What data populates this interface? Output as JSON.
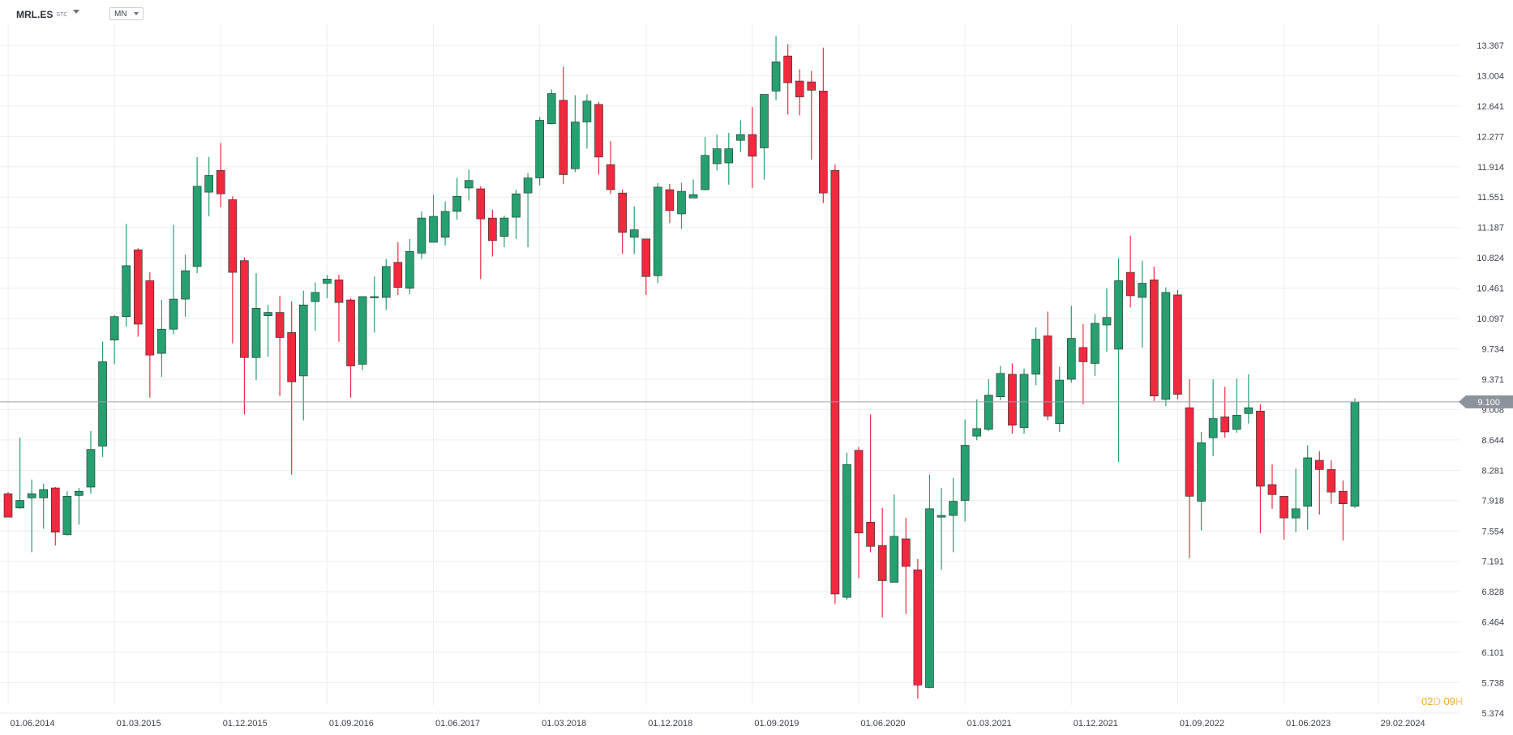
{
  "toolbar": {
    "symbol": "MRL.ES",
    "symbol_suffix": "STC",
    "timeframe": "MN"
  },
  "countdown": {
    "days": "02",
    "day_unit": "D",
    "hours": "09",
    "hour_unit": "H"
  },
  "colors": {
    "up": "#26a06e",
    "down": "#f0293e",
    "grid": "#eceef1",
    "price_line": "#9aa0a8",
    "price_tag": "#8c939c",
    "countdown": "#f5a623"
  },
  "chart_data": {
    "type": "candlestick",
    "title": "",
    "interval": "monthly",
    "ylim": [
      5.374,
      13.49
    ],
    "y_ticks": [
      "13.367",
      "13.004",
      "12.641",
      "12.277",
      "11.914",
      "11.551",
      "11.187",
      "10.824",
      "10.461",
      "10.097",
      "9.734",
      "9.371",
      "9.008",
      "8.644",
      "8.281",
      "7.918",
      "7.554",
      "7.191",
      "6.828",
      "6.464",
      "6.101",
      "5.738",
      "5.374"
    ],
    "x_ticks": [
      "01.06.2014",
      "01.03.2015",
      "01.12.2015",
      "01.09.2016",
      "01.06.2017",
      "01.03.2018",
      "01.12.2018",
      "01.09.2019",
      "01.06.2020",
      "01.03.2021",
      "01.12.2021",
      "01.09.2022",
      "01.06.2023",
      "29.02.2024"
    ],
    "current_price": "9.100",
    "candles": [
      {
        "d": "2014-06",
        "o": 8.0,
        "h": 8.02,
        "l": 7.72,
        "c": 7.72
      },
      {
        "d": "2014-07",
        "o": 7.83,
        "h": 8.67,
        "l": 7.82,
        "c": 7.92
      },
      {
        "d": "2014-08",
        "o": 7.95,
        "h": 8.17,
        "l": 7.3,
        "c": 8.0
      },
      {
        "d": "2014-09",
        "o": 7.95,
        "h": 8.12,
        "l": 7.58,
        "c": 8.05
      },
      {
        "d": "2014-10",
        "o": 8.07,
        "h": 8.08,
        "l": 7.38,
        "c": 7.54
      },
      {
        "d": "2014-11",
        "o": 7.51,
        "h": 8.03,
        "l": 7.5,
        "c": 7.97
      },
      {
        "d": "2014-12",
        "o": 7.98,
        "h": 8.07,
        "l": 7.63,
        "c": 8.03
      },
      {
        "d": "2015-01",
        "o": 8.08,
        "h": 8.75,
        "l": 8.0,
        "c": 8.53
      },
      {
        "d": "2015-02",
        "o": 8.57,
        "h": 9.82,
        "l": 8.44,
        "c": 9.58
      },
      {
        "d": "2015-03",
        "o": 9.84,
        "h": 10.14,
        "l": 9.55,
        "c": 10.12
      },
      {
        "d": "2015-04",
        "o": 10.12,
        "h": 11.23,
        "l": 10.0,
        "c": 10.73
      },
      {
        "d": "2015-05",
        "o": 10.92,
        "h": 10.94,
        "l": 9.88,
        "c": 10.03
      },
      {
        "d": "2015-06",
        "o": 10.55,
        "h": 10.65,
        "l": 9.15,
        "c": 9.66
      },
      {
        "d": "2015-07",
        "o": 9.68,
        "h": 10.32,
        "l": 9.4,
        "c": 9.97
      },
      {
        "d": "2015-08",
        "o": 9.97,
        "h": 11.22,
        "l": 9.91,
        "c": 10.33
      },
      {
        "d": "2015-09",
        "o": 10.33,
        "h": 10.86,
        "l": 10.12,
        "c": 10.67
      },
      {
        "d": "2015-10",
        "o": 10.72,
        "h": 12.03,
        "l": 10.64,
        "c": 11.68
      },
      {
        "d": "2015-11",
        "o": 11.61,
        "h": 12.03,
        "l": 11.32,
        "c": 11.81
      },
      {
        "d": "2015-12",
        "o": 11.87,
        "h": 12.2,
        "l": 11.43,
        "c": 11.59
      },
      {
        "d": "2016-01",
        "o": 11.52,
        "h": 11.56,
        "l": 9.8,
        "c": 10.65
      },
      {
        "d": "2016-02",
        "o": 10.79,
        "h": 10.83,
        "l": 8.95,
        "c": 9.63
      },
      {
        "d": "2016-03",
        "o": 9.63,
        "h": 10.64,
        "l": 9.36,
        "c": 10.22
      },
      {
        "d": "2016-04",
        "o": 10.13,
        "h": 10.26,
        "l": 9.64,
        "c": 10.17
      },
      {
        "d": "2016-05",
        "o": 10.17,
        "h": 10.37,
        "l": 9.17,
        "c": 9.87
      },
      {
        "d": "2016-06",
        "o": 9.93,
        "h": 10.3,
        "l": 8.23,
        "c": 9.34
      },
      {
        "d": "2016-07",
        "o": 9.41,
        "h": 10.43,
        "l": 8.88,
        "c": 10.26
      },
      {
        "d": "2016-08",
        "o": 10.3,
        "h": 10.53,
        "l": 9.95,
        "c": 10.41
      },
      {
        "d": "2016-09",
        "o": 10.52,
        "h": 10.62,
        "l": 10.34,
        "c": 10.57
      },
      {
        "d": "2016-10",
        "o": 10.56,
        "h": 10.62,
        "l": 9.82,
        "c": 10.29
      },
      {
        "d": "2016-11",
        "o": 10.32,
        "h": 10.34,
        "l": 9.15,
        "c": 9.53
      },
      {
        "d": "2016-12",
        "o": 9.55,
        "h": 10.35,
        "l": 9.48,
        "c": 10.36
      },
      {
        "d": "2017-01",
        "o": 10.35,
        "h": 10.6,
        "l": 9.93,
        "c": 10.36
      },
      {
        "d": "2017-02",
        "o": 10.35,
        "h": 10.81,
        "l": 10.2,
        "c": 10.72
      },
      {
        "d": "2017-03",
        "o": 10.77,
        "h": 11.01,
        "l": 10.38,
        "c": 10.47
      },
      {
        "d": "2017-04",
        "o": 10.46,
        "h": 11.05,
        "l": 10.39,
        "c": 10.9
      },
      {
        "d": "2017-05",
        "o": 10.88,
        "h": 11.38,
        "l": 10.81,
        "c": 11.3
      },
      {
        "d": "2017-06",
        "o": 11.01,
        "h": 11.58,
        "l": 11.01,
        "c": 11.32
      },
      {
        "d": "2017-07",
        "o": 11.07,
        "h": 11.5,
        "l": 10.97,
        "c": 11.38
      },
      {
        "d": "2017-08",
        "o": 11.38,
        "h": 11.78,
        "l": 11.28,
        "c": 11.56
      },
      {
        "d": "2017-09",
        "o": 11.66,
        "h": 11.88,
        "l": 11.51,
        "c": 11.75
      },
      {
        "d": "2017-10",
        "o": 11.65,
        "h": 11.68,
        "l": 10.57,
        "c": 11.29
      },
      {
        "d": "2017-11",
        "o": 11.3,
        "h": 11.4,
        "l": 10.84,
        "c": 11.03
      },
      {
        "d": "2017-12",
        "o": 11.08,
        "h": 11.33,
        "l": 10.95,
        "c": 11.3
      },
      {
        "d": "2018-01",
        "o": 11.31,
        "h": 11.64,
        "l": 11.05,
        "c": 11.59
      },
      {
        "d": "2018-02",
        "o": 11.6,
        "h": 11.84,
        "l": 10.95,
        "c": 11.78
      },
      {
        "d": "2018-03",
        "o": 11.78,
        "h": 12.51,
        "l": 11.69,
        "c": 12.47
      },
      {
        "d": "2018-04",
        "o": 12.43,
        "h": 12.84,
        "l": 12.42,
        "c": 12.79
      },
      {
        "d": "2018-05",
        "o": 12.71,
        "h": 13.11,
        "l": 11.71,
        "c": 11.82
      },
      {
        "d": "2018-06",
        "o": 11.89,
        "h": 12.77,
        "l": 11.85,
        "c": 12.45
      },
      {
        "d": "2018-07",
        "o": 12.45,
        "h": 12.78,
        "l": 12.13,
        "c": 12.7
      },
      {
        "d": "2018-08",
        "o": 12.66,
        "h": 12.69,
        "l": 11.82,
        "c": 12.03
      },
      {
        "d": "2018-09",
        "o": 11.94,
        "h": 12.22,
        "l": 11.59,
        "c": 11.64
      },
      {
        "d": "2018-10",
        "o": 11.6,
        "h": 11.64,
        "l": 10.87,
        "c": 11.13
      },
      {
        "d": "2018-11",
        "o": 11.07,
        "h": 11.44,
        "l": 10.87,
        "c": 11.16
      },
      {
        "d": "2018-12",
        "o": 11.05,
        "h": 11.05,
        "l": 10.38,
        "c": 10.6
      },
      {
        "d": "2019-01",
        "o": 10.61,
        "h": 11.72,
        "l": 10.52,
        "c": 11.67
      },
      {
        "d": "2019-02",
        "o": 11.64,
        "h": 11.71,
        "l": 11.24,
        "c": 11.39
      },
      {
        "d": "2019-03",
        "o": 11.35,
        "h": 11.72,
        "l": 11.17,
        "c": 11.62
      },
      {
        "d": "2019-04",
        "o": 11.54,
        "h": 11.76,
        "l": 11.54,
        "c": 11.58
      },
      {
        "d": "2019-05",
        "o": 11.64,
        "h": 12.27,
        "l": 11.63,
        "c": 12.05
      },
      {
        "d": "2019-06",
        "o": 11.95,
        "h": 12.3,
        "l": 11.87,
        "c": 12.13
      },
      {
        "d": "2019-07",
        "o": 11.96,
        "h": 12.32,
        "l": 11.7,
        "c": 12.13
      },
      {
        "d": "2019-08",
        "o": 12.23,
        "h": 12.47,
        "l": 12.09,
        "c": 12.3
      },
      {
        "d": "2019-09",
        "o": 12.3,
        "h": 12.63,
        "l": 11.66,
        "c": 12.04
      },
      {
        "d": "2019-10",
        "o": 12.14,
        "h": 12.78,
        "l": 11.76,
        "c": 12.78
      },
      {
        "d": "2019-11",
        "o": 12.82,
        "h": 13.48,
        "l": 12.71,
        "c": 13.17
      },
      {
        "d": "2019-12",
        "o": 13.24,
        "h": 13.38,
        "l": 12.54,
        "c": 12.92
      },
      {
        "d": "2020-01",
        "o": 12.94,
        "h": 13.08,
        "l": 12.53,
        "c": 12.75
      },
      {
        "d": "2020-02",
        "o": 12.93,
        "h": 13.06,
        "l": 12.0,
        "c": 12.83
      },
      {
        "d": "2020-03",
        "o": 12.82,
        "h": 13.34,
        "l": 11.48,
        "c": 11.6
      },
      {
        "d": "2020-04",
        "o": 11.87,
        "h": 11.94,
        "l": 6.68,
        "c": 6.8
      },
      {
        "d": "2020-05",
        "o": 6.76,
        "h": 8.49,
        "l": 6.73,
        "c": 8.35
      },
      {
        "d": "2020-06",
        "o": 8.52,
        "h": 8.56,
        "l": 6.99,
        "c": 7.53
      },
      {
        "d": "2020-07",
        "o": 7.66,
        "h": 8.95,
        "l": 7.3,
        "c": 7.37
      },
      {
        "d": "2020-08",
        "o": 7.38,
        "h": 7.83,
        "l": 6.52,
        "c": 6.96
      },
      {
        "d": "2020-09",
        "o": 6.94,
        "h": 7.99,
        "l": 6.97,
        "c": 7.49
      },
      {
        "d": "2020-10",
        "o": 7.46,
        "h": 7.71,
        "l": 6.56,
        "c": 7.13
      },
      {
        "d": "2020-11",
        "o": 7.09,
        "h": 7.22,
        "l": 5.55,
        "c": 5.71
      },
      {
        "d": "2020-12",
        "o": 5.68,
        "h": 8.23,
        "l": 5.67,
        "c": 7.82
      },
      {
        "d": "2021-01",
        "o": 7.72,
        "h": 8.07,
        "l": 7.09,
        "c": 7.74
      },
      {
        "d": "2021-02",
        "o": 7.74,
        "h": 8.19,
        "l": 7.3,
        "c": 7.91
      },
      {
        "d": "2021-03",
        "o": 7.92,
        "h": 8.89,
        "l": 7.67,
        "c": 8.58
      },
      {
        "d": "2021-04",
        "o": 8.69,
        "h": 9.13,
        "l": 8.64,
        "c": 8.78
      },
      {
        "d": "2021-05",
        "o": 8.77,
        "h": 9.37,
        "l": 8.75,
        "c": 9.18
      },
      {
        "d": "2021-06",
        "o": 9.16,
        "h": 9.53,
        "l": 9.12,
        "c": 9.44
      },
      {
        "d": "2021-07",
        "o": 9.43,
        "h": 9.56,
        "l": 8.72,
        "c": 8.82
      },
      {
        "d": "2021-08",
        "o": 8.79,
        "h": 9.5,
        "l": 8.72,
        "c": 9.43
      },
      {
        "d": "2021-09",
        "o": 9.43,
        "h": 9.99,
        "l": 9.3,
        "c": 9.85
      },
      {
        "d": "2021-10",
        "o": 9.89,
        "h": 10.18,
        "l": 8.88,
        "c": 8.93
      },
      {
        "d": "2021-11",
        "o": 8.84,
        "h": 9.52,
        "l": 8.74,
        "c": 9.36
      },
      {
        "d": "2021-12",
        "o": 9.37,
        "h": 10.25,
        "l": 9.33,
        "c": 9.86
      },
      {
        "d": "2022-01",
        "o": 9.75,
        "h": 10.03,
        "l": 9.07,
        "c": 9.58
      },
      {
        "d": "2022-02",
        "o": 9.56,
        "h": 10.15,
        "l": 9.41,
        "c": 10.04
      },
      {
        "d": "2022-03",
        "o": 10.02,
        "h": 10.46,
        "l": 9.7,
        "c": 10.11
      },
      {
        "d": "2022-04",
        "o": 9.73,
        "h": 10.82,
        "l": 8.38,
        "c": 10.55
      },
      {
        "d": "2022-05",
        "o": 10.65,
        "h": 11.09,
        "l": 10.23,
        "c": 10.37
      },
      {
        "d": "2022-06",
        "o": 10.35,
        "h": 10.79,
        "l": 9.75,
        "c": 10.52
      },
      {
        "d": "2022-07",
        "o": 10.56,
        "h": 10.72,
        "l": 9.11,
        "c": 9.17
      },
      {
        "d": "2022-08",
        "o": 9.13,
        "h": 10.47,
        "l": 9.05,
        "c": 10.41
      },
      {
        "d": "2022-09",
        "o": 10.38,
        "h": 10.44,
        "l": 9.13,
        "c": 9.19
      },
      {
        "d": "2022-10",
        "o": 9.03,
        "h": 9.37,
        "l": 7.23,
        "c": 7.97
      },
      {
        "d": "2022-11",
        "o": 7.91,
        "h": 8.74,
        "l": 7.56,
        "c": 8.61
      },
      {
        "d": "2022-12",
        "o": 8.67,
        "h": 9.37,
        "l": 8.45,
        "c": 8.9
      },
      {
        "d": "2023-01",
        "o": 8.92,
        "h": 9.28,
        "l": 8.67,
        "c": 8.74
      },
      {
        "d": "2023-02",
        "o": 8.77,
        "h": 9.38,
        "l": 8.73,
        "c": 8.94
      },
      {
        "d": "2023-03",
        "o": 8.96,
        "h": 9.43,
        "l": 8.84,
        "c": 9.03
      },
      {
        "d": "2023-04",
        "o": 8.99,
        "h": 9.07,
        "l": 7.53,
        "c": 8.09
      },
      {
        "d": "2023-05",
        "o": 8.11,
        "h": 8.35,
        "l": 7.82,
        "c": 7.99
      },
      {
        "d": "2023-06",
        "o": 7.97,
        "h": 7.94,
        "l": 7.45,
        "c": 7.71
      },
      {
        "d": "2023-07",
        "o": 7.71,
        "h": 8.3,
        "l": 7.54,
        "c": 7.82
      },
      {
        "d": "2023-08",
        "o": 7.85,
        "h": 8.58,
        "l": 7.57,
        "c": 8.43
      },
      {
        "d": "2023-09",
        "o": 8.4,
        "h": 8.51,
        "l": 7.75,
        "c": 8.29
      },
      {
        "d": "2023-10",
        "o": 8.29,
        "h": 8.4,
        "l": 7.88,
        "c": 8.02
      },
      {
        "d": "2023-11",
        "o": 8.03,
        "h": 8.16,
        "l": 7.44,
        "c": 7.88
      },
      {
        "d": "2023-12",
        "o": 7.85,
        "h": 9.14,
        "l": 7.83,
        "c": 9.1
      }
    ]
  }
}
